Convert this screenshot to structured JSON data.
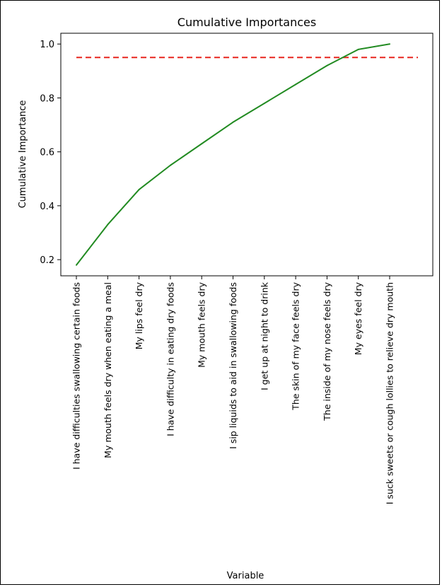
{
  "chart_data": {
    "type": "line",
    "title": "Cumulative Importances",
    "xlabel": "Variable",
    "ylabel": "Cumulative Importance",
    "categories": [
      "I have difficulties swallowing certain foods",
      "My mouth feels dry when eating a meal",
      "My lips feel dry",
      "I have difficulty in eating dry foods",
      "My mouth feels dry",
      "I sip liquids to aid in swallowing foods",
      "I get up at night to drink",
      "The skin of my face feels dry",
      "The inside of my nose feels dry",
      "My eyes feel dry",
      "I suck sweets or cough lollies to relieve dry mouth"
    ],
    "series": [
      {
        "values": [
          0.18,
          0.33,
          0.46,
          0.55,
          0.63,
          0.71,
          0.78,
          0.85,
          0.92,
          0.98,
          1.0
        ],
        "color": "#228b22"
      }
    ],
    "threshold": {
      "value": 0.95,
      "color": "#e8251e",
      "style": "dashed"
    },
    "yticks": [
      "0.2",
      "0.4",
      "0.6",
      "0.8",
      "1.0"
    ],
    "ylim": [
      0.14,
      1.04
    ],
    "grid": false,
    "legend": "none"
  }
}
